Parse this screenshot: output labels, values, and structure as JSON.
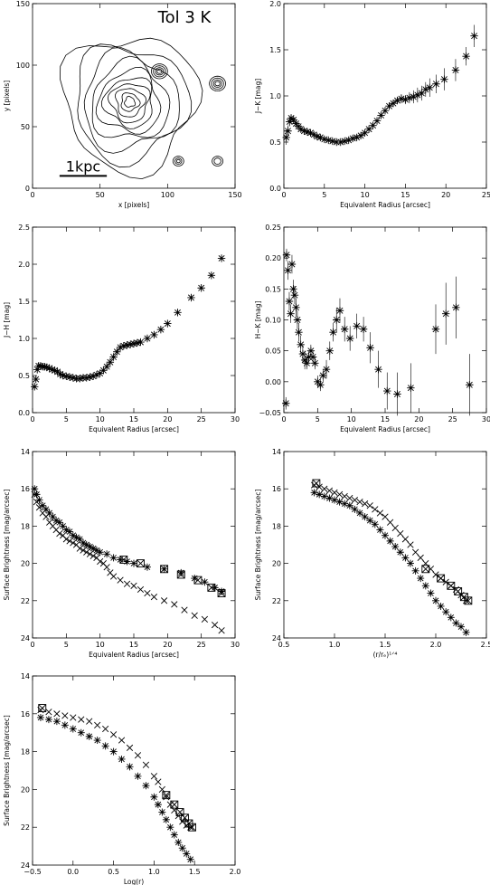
{
  "chart_data": [
    {
      "id": "contour",
      "type": "contour",
      "title": "Tol 3 K",
      "xlabel": "x [pixels]",
      "ylabel": "y [pixels]",
      "xlim": [
        0,
        150
      ],
      "ylim": [
        0,
        150
      ],
      "xticks": [
        0,
        50,
        100,
        150
      ],
      "yticks": [
        0,
        50,
        100,
        150
      ],
      "scalebar_label": "1kpc",
      "scalebar_x": [
        20,
        55
      ],
      "scalebar_y": 10,
      "blobs": [
        {
          "cx": 72,
          "cy": 70,
          "rx": [
            52,
            44,
            37,
            30,
            24,
            19,
            15,
            11,
            7,
            4
          ]
        },
        {
          "cx": 94,
          "cy": 95,
          "rx": [
            6,
            4.5,
            3,
            1.8
          ]
        },
        {
          "cx": 137,
          "cy": 85,
          "rx": [
            6,
            4.5,
            3,
            1.8
          ]
        },
        {
          "cx": 108,
          "cy": 22,
          "rx": [
            4,
            2.5,
            1.3
          ]
        },
        {
          "cx": 137,
          "cy": 22,
          "rx": [
            4,
            2.5
          ]
        }
      ]
    },
    {
      "id": "jk",
      "type": "scatter",
      "xlabel": "Equivalent Radius [arcsec]",
      "ylabel": "J−K [mag]",
      "xlim": [
        0,
        25
      ],
      "ylim": [
        0,
        2
      ],
      "xticks": [
        0,
        5,
        10,
        15,
        20,
        25
      ],
      "yticks": [
        0.0,
        0.5,
        1.0,
        1.5,
        2.0
      ],
      "yticklabels": [
        "0.0",
        "0.5",
        "1.0",
        "1.5",
        "2.0"
      ],
      "x": [
        0.3,
        0.5,
        0.7,
        0.9,
        1.2,
        1.5,
        1.8,
        2.1,
        2.5,
        2.9,
        3.3,
        3.7,
        4.1,
        4.5,
        5.0,
        5.5,
        6.0,
        6.5,
        7.0,
        7.5,
        8.0,
        8.5,
        9.0,
        9.5,
        10.0,
        10.5,
        11.0,
        11.5,
        12.0,
        12.5,
        13.0,
        13.5,
        14.0,
        14.5,
        15.0,
        15.5,
        16.0,
        16.5,
        17.0,
        17.5,
        18.0,
        18.8,
        19.8,
        21.2,
        22.5,
        23.5
      ],
      "y": [
        0.55,
        0.62,
        0.72,
        0.76,
        0.74,
        0.7,
        0.67,
        0.64,
        0.62,
        0.61,
        0.6,
        0.58,
        0.56,
        0.55,
        0.53,
        0.52,
        0.51,
        0.5,
        0.5,
        0.51,
        0.52,
        0.54,
        0.55,
        0.57,
        0.6,
        0.64,
        0.68,
        0.73,
        0.79,
        0.84,
        0.89,
        0.92,
        0.95,
        0.97,
        0.96,
        0.98,
        0.99,
        1.01,
        1.03,
        1.07,
        1.09,
        1.13,
        1.18,
        1.28,
        1.43,
        1.65
      ],
      "err": [
        0.08,
        0.06,
        0.05,
        0.04,
        0.03,
        0.03,
        0.03,
        0.03,
        0.03,
        0.03,
        0.03,
        0.03,
        0.03,
        0.03,
        0.02,
        0.02,
        0.02,
        0.02,
        0.02,
        0.02,
        0.02,
        0.02,
        0.02,
        0.02,
        0.02,
        0.02,
        0.03,
        0.03,
        0.03,
        0.03,
        0.03,
        0.04,
        0.04,
        0.05,
        0.05,
        0.06,
        0.07,
        0.08,
        0.08,
        0.08,
        0.1,
        0.1,
        0.12,
        0.12,
        0.1,
        0.12
      ]
    },
    {
      "id": "jh",
      "type": "scatter",
      "xlabel": "Equivalent Radius [arcsec]",
      "ylabel": "J−H [mag]",
      "xlim": [
        0,
        30
      ],
      "ylim": [
        0,
        2.5
      ],
      "xticks": [
        0,
        5,
        10,
        15,
        20,
        25,
        30
      ],
      "yticks": [
        0.0,
        0.5,
        1.0,
        1.5,
        2.0,
        2.5
      ],
      "yticklabels": [
        "0.0",
        "0.5",
        "1.0",
        "1.5",
        "2.0",
        "2.5"
      ],
      "x": [
        0.3,
        0.5,
        0.7,
        0.9,
        1.2,
        1.5,
        1.8,
        2.1,
        2.5,
        2.9,
        3.3,
        3.7,
        4.1,
        4.5,
        5.0,
        5.5,
        6.0,
        6.5,
        7.0,
        7.5,
        8.0,
        8.5,
        9.0,
        9.5,
        10.0,
        10.5,
        11.0,
        11.5,
        12.0,
        12.5,
        13.0,
        13.5,
        14.0,
        14.5,
        15.0,
        15.5,
        16.0,
        17.0,
        18.0,
        19.0,
        20.0,
        21.5,
        23.5,
        25.0,
        26.5,
        28.0
      ],
      "y": [
        0.35,
        0.45,
        0.58,
        0.63,
        0.63,
        0.62,
        0.62,
        0.61,
        0.6,
        0.58,
        0.57,
        0.55,
        0.52,
        0.5,
        0.49,
        0.48,
        0.47,
        0.46,
        0.46,
        0.47,
        0.47,
        0.48,
        0.49,
        0.51,
        0.53,
        0.57,
        0.62,
        0.68,
        0.75,
        0.82,
        0.88,
        0.9,
        0.91,
        0.92,
        0.93,
        0.94,
        0.95,
        1.0,
        1.05,
        1.12,
        1.2,
        1.35,
        1.55,
        1.68,
        1.85,
        2.08
      ],
      "err": [
        0.05,
        0.04,
        0.04,
        0.03,
        0.03,
        0.03,
        0.03,
        0.03,
        0.03,
        0.03,
        0.03,
        0.03,
        0.03,
        0.03,
        0.02,
        0.02,
        0.02,
        0.02,
        0.02,
        0.02,
        0.02,
        0.02,
        0.02,
        0.02,
        0.02,
        0.02,
        0.02,
        0.02,
        0.03,
        0.03,
        0.03,
        0.03,
        0.03,
        0.03,
        0.03,
        0.03,
        0.03,
        0.03,
        0.03,
        0.03,
        0.03,
        0.03,
        0.03,
        0.03,
        0.03,
        0.03
      ]
    },
    {
      "id": "hk",
      "type": "scatter",
      "xlabel": "Equivalent Radius [arcsec]",
      "ylabel": "H−K [mag]",
      "xlim": [
        0,
        30
      ],
      "ylim": [
        -0.05,
        0.25
      ],
      "xticks": [
        0,
        5,
        10,
        15,
        20,
        25,
        30
      ],
      "yticks": [
        -0.05,
        0.0,
        0.05,
        0.1,
        0.15,
        0.2,
        0.25
      ],
      "yticklabels": [
        "−0.05",
        "0.00",
        "0.05",
        "0.10",
        "0.15",
        "0.20",
        "0.25"
      ],
      "x": [
        0.3,
        0.4,
        0.6,
        0.8,
        1.0,
        1.2,
        1.4,
        1.6,
        1.8,
        2.0,
        2.2,
        2.5,
        2.8,
        3.1,
        3.4,
        3.7,
        4.0,
        4.3,
        4.6,
        5.0,
        5.4,
        5.8,
        6.3,
        6.8,
        7.3,
        7.8,
        8.3,
        9.0,
        9.8,
        10.8,
        11.8,
        12.8,
        14.0,
        15.3,
        16.8,
        18.8,
        22.5,
        24.0,
        25.5,
        27.5
      ],
      "y": [
        -0.035,
        0.205,
        0.18,
        0.13,
        0.11,
        0.19,
        0.15,
        0.14,
        0.12,
        0.1,
        0.08,
        0.06,
        0.045,
        0.035,
        0.03,
        0.04,
        0.05,
        0.04,
        0.03,
        0.0,
        -0.005,
        0.01,
        0.02,
        0.05,
        0.08,
        0.1,
        0.115,
        0.085,
        0.07,
        0.09,
        0.085,
        0.055,
        0.02,
        -0.015,
        -0.02,
        -0.01,
        0.085,
        0.11,
        0.12,
        -0.005
      ],
      "err": [
        0.01,
        0.01,
        0.015,
        0.015,
        0.015,
        0.015,
        0.015,
        0.015,
        0.015,
        0.015,
        0.015,
        0.015,
        0.015,
        0.015,
        0.01,
        0.01,
        0.01,
        0.01,
        0.01,
        0.01,
        0.01,
        0.01,
        0.015,
        0.015,
        0.015,
        0.02,
        0.02,
        0.02,
        0.02,
        0.02,
        0.02,
        0.025,
        0.03,
        0.03,
        0.035,
        0.04,
        0.04,
        0.05,
        0.05,
        0.05
      ]
    },
    {
      "id": "sb_r",
      "type": "scatter",
      "xlabel": "Equivalent Radius [arcsec]",
      "ylabel": "Surface Brightness [mag/arcsec]",
      "xlim": [
        0,
        30
      ],
      "ylim": [
        24,
        14
      ],
      "xticks": [
        0,
        5,
        10,
        15,
        20,
        25,
        30
      ],
      "yticks": [
        14,
        16,
        18,
        20,
        22,
        24
      ],
      "series": [
        {
          "marker": "x",
          "x": [
            0.3,
            0.6,
            1.0,
            1.5,
            2.0,
            2.5,
            3.0,
            3.5,
            4.0,
            4.5,
            5.0,
            5.5,
            6.0,
            6.5,
            7.0,
            7.5,
            8.0,
            8.5,
            9.0,
            9.5,
            10.0,
            10.5,
            11.0,
            11.5,
            12.0,
            13.0,
            14.0,
            15.0,
            16.0,
            17.0,
            18.0,
            19.5,
            21.0,
            22.5,
            24.0,
            25.5,
            27.0,
            28.0
          ],
          "y": [
            16.3,
            16.7,
            17.0,
            17.3,
            17.5,
            17.8,
            18.0,
            18.2,
            18.4,
            18.5,
            18.7,
            18.8,
            18.9,
            19.0,
            19.2,
            19.3,
            19.4,
            19.5,
            19.6,
            19.7,
            19.9,
            20.0,
            20.2,
            20.5,
            20.7,
            20.9,
            21.1,
            21.2,
            21.4,
            21.6,
            21.8,
            22.0,
            22.2,
            22.5,
            22.8,
            23.0,
            23.3,
            23.6
          ]
        },
        {
          "marker": "star",
          "x": [
            0.3,
            0.6,
            1.0,
            1.5,
            2.0,
            2.5,
            3.0,
            3.5,
            4.0,
            4.5,
            5.0,
            5.5,
            6.0,
            6.5,
            7.0,
            7.5,
            8.0,
            8.5,
            9.0,
            9.5,
            10.0,
            11.0,
            12.0,
            13.0,
            14.0,
            15.0,
            17.0,
            19.5,
            22.0,
            24.0,
            25.5,
            27.0,
            28.0
          ],
          "y": [
            16.0,
            16.3,
            16.6,
            16.9,
            17.1,
            17.3,
            17.5,
            17.7,
            17.8,
            18.0,
            18.2,
            18.3,
            18.5,
            18.6,
            18.7,
            18.9,
            19.0,
            19.1,
            19.2,
            19.3,
            19.4,
            19.5,
            19.7,
            19.8,
            19.9,
            20.0,
            20.2,
            20.3,
            20.5,
            20.8,
            21.0,
            21.3,
            21.5
          ]
        },
        {
          "marker": "box",
          "x": [
            13.5,
            16.0,
            19.5,
            22.0,
            24.5,
            26.5,
            28.0
          ],
          "y": [
            19.8,
            20.0,
            20.3,
            20.6,
            20.9,
            21.3,
            21.6
          ]
        }
      ]
    },
    {
      "id": "sb_r14",
      "type": "scatter",
      "xlabel": "(r/rₑ)¹ᐟ⁴",
      "ylabel": "Surface Brightness [mag/arcsec]",
      "xlim": [
        0.5,
        2.5
      ],
      "ylim": [
        24,
        14
      ],
      "xticks": [
        0.5,
        1.0,
        1.5,
        2.0,
        2.5
      ],
      "xticklabels": [
        "0.5",
        "1.0",
        "1.5",
        "2.0",
        "2.5"
      ],
      "yticks": [
        14,
        16,
        18,
        20,
        22,
        24
      ],
      "series": [
        {
          "marker": "x",
          "x": [
            0.8,
            0.85,
            0.9,
            0.95,
            1.0,
            1.05,
            1.1,
            1.15,
            1.2,
            1.25,
            1.3,
            1.35,
            1.4,
            1.45,
            1.5,
            1.55,
            1.6,
            1.65,
            1.7,
            1.75,
            1.8,
            1.85,
            1.9,
            1.95,
            2.0,
            2.05,
            2.1,
            2.15,
            2.2,
            2.25,
            2.3
          ],
          "y": [
            15.8,
            15.9,
            16.0,
            16.1,
            16.2,
            16.3,
            16.4,
            16.5,
            16.6,
            16.7,
            16.8,
            16.9,
            17.1,
            17.3,
            17.5,
            17.8,
            18.1,
            18.4,
            18.7,
            19.0,
            19.4,
            19.7,
            20.0,
            20.3,
            20.6,
            20.8,
            21.0,
            21.2,
            21.4,
            21.7,
            22.0
          ]
        },
        {
          "marker": "star",
          "x": [
            0.8,
            0.85,
            0.9,
            0.95,
            1.0,
            1.05,
            1.1,
            1.15,
            1.2,
            1.25,
            1.3,
            1.35,
            1.4,
            1.45,
            1.5,
            1.55,
            1.6,
            1.65,
            1.7,
            1.75,
            1.8,
            1.85,
            1.9,
            1.95,
            2.0,
            2.05,
            2.1,
            2.15,
            2.2,
            2.25,
            2.3
          ],
          "y": [
            16.2,
            16.3,
            16.4,
            16.5,
            16.6,
            16.7,
            16.8,
            16.9,
            17.1,
            17.3,
            17.5,
            17.7,
            17.9,
            18.2,
            18.5,
            18.8,
            19.1,
            19.4,
            19.7,
            20.0,
            20.4,
            20.8,
            21.2,
            21.6,
            22.0,
            22.3,
            22.6,
            22.9,
            23.2,
            23.4,
            23.7
          ]
        },
        {
          "marker": "box",
          "x": [
            0.82,
            1.9,
            2.05,
            2.15,
            2.22,
            2.28,
            2.32
          ],
          "y": [
            15.7,
            20.3,
            20.8,
            21.2,
            21.5,
            21.8,
            22.0
          ]
        }
      ]
    },
    {
      "id": "sb_log",
      "type": "scatter",
      "xlabel": "Log(r)",
      "ylabel": "Surface Brightness [mag/arcsec]",
      "xlim": [
        -0.5,
        2.0
      ],
      "ylim": [
        24,
        14
      ],
      "xticks": [
        -0.5,
        0.0,
        0.5,
        1.0,
        1.5,
        2.0
      ],
      "xticklabels": [
        "−0.5",
        "0.0",
        "0.5",
        "1.0",
        "1.5",
        "2.0"
      ],
      "yticks": [
        14,
        16,
        18,
        20,
        22,
        24
      ],
      "series": [
        {
          "marker": "x",
          "x": [
            -0.4,
            -0.3,
            -0.2,
            -0.1,
            0.0,
            0.1,
            0.2,
            0.3,
            0.4,
            0.5,
            0.6,
            0.7,
            0.8,
            0.9,
            1.0,
            1.05,
            1.1,
            1.15,
            1.2,
            1.25,
            1.3,
            1.35,
            1.4,
            1.45
          ],
          "y": [
            15.8,
            15.9,
            16.0,
            16.1,
            16.2,
            16.3,
            16.4,
            16.6,
            16.8,
            17.1,
            17.4,
            17.8,
            18.2,
            18.7,
            19.3,
            19.6,
            20.0,
            20.4,
            20.8,
            21.1,
            21.4,
            21.7,
            21.9,
            22.0
          ]
        },
        {
          "marker": "star",
          "x": [
            -0.4,
            -0.3,
            -0.2,
            -0.1,
            0.0,
            0.1,
            0.2,
            0.3,
            0.4,
            0.5,
            0.6,
            0.7,
            0.8,
            0.9,
            1.0,
            1.05,
            1.1,
            1.15,
            1.2,
            1.25,
            1.3,
            1.35,
            1.4,
            1.45
          ],
          "y": [
            16.2,
            16.3,
            16.4,
            16.6,
            16.8,
            17.0,
            17.2,
            17.4,
            17.7,
            18.0,
            18.4,
            18.8,
            19.3,
            19.8,
            20.4,
            20.8,
            21.2,
            21.6,
            22.0,
            22.4,
            22.8,
            23.1,
            23.4,
            23.7
          ]
        },
        {
          "marker": "box",
          "x": [
            -0.38,
            1.15,
            1.25,
            1.32,
            1.38,
            1.43,
            1.47
          ],
          "y": [
            15.7,
            20.3,
            20.8,
            21.2,
            21.5,
            21.8,
            22.0
          ]
        }
      ]
    }
  ]
}
